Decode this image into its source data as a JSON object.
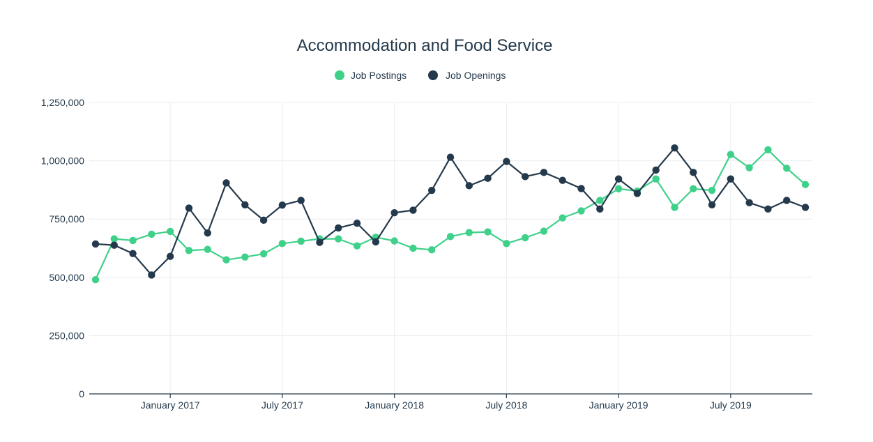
{
  "chart_data": {
    "type": "line",
    "title": "Accommodation and Food Service",
    "xlabel": "",
    "ylabel": "",
    "grid": true,
    "legend_position": "top-center",
    "x": [
      "2016-09",
      "2016-10",
      "2016-11",
      "2016-12",
      "2017-01",
      "2017-02",
      "2017-03",
      "2017-04",
      "2017-05",
      "2017-06",
      "2017-07",
      "2017-08",
      "2017-09",
      "2017-10",
      "2017-11",
      "2017-12",
      "2018-01",
      "2018-02",
      "2018-03",
      "2018-04",
      "2018-05",
      "2018-06",
      "2018-07",
      "2018-08",
      "2018-09",
      "2018-10",
      "2018-11",
      "2018-12",
      "2019-01",
      "2019-02",
      "2019-03",
      "2019-04",
      "2019-05",
      "2019-06",
      "2019-07",
      "2019-08",
      "2019-09",
      "2019-10",
      "2019-11"
    ],
    "x_ticks": [
      {
        "date": "2017-01",
        "label": "January 2017"
      },
      {
        "date": "2017-07",
        "label": "July 2017"
      },
      {
        "date": "2018-01",
        "label": "January 2018"
      },
      {
        "date": "2018-07",
        "label": "July 2018"
      },
      {
        "date": "2019-01",
        "label": "January 2019"
      },
      {
        "date": "2019-07",
        "label": "July 2019"
      }
    ],
    "y_ticks": [
      {
        "value": 0,
        "label": "0"
      },
      {
        "value": 250000,
        "label": "250,000"
      },
      {
        "value": 500000,
        "label": "500,000"
      },
      {
        "value": 750000,
        "label": "750,000"
      },
      {
        "value": 1000000,
        "label": "1,000,000"
      },
      {
        "value": 1250000,
        "label": "1,250,000"
      }
    ],
    "ylim": [
      0,
      1250000
    ],
    "series": [
      {
        "name": "Job Postings",
        "color": "#3fd08a",
        "values": [
          490000,
          665000,
          658000,
          685000,
          697000,
          615000,
          620000,
          575000,
          587000,
          601000,
          645000,
          655000,
          665000,
          665000,
          635000,
          672000,
          656000,
          625000,
          618000,
          675000,
          692000,
          695000,
          645000,
          670000,
          698000,
          755000,
          785000,
          830000,
          880000,
          870000,
          922000,
          800000,
          880000,
          873000,
          1027000,
          970000,
          1047000,
          968000,
          898000
        ]
      },
      {
        "name": "Job Openings",
        "color": "#24394c",
        "values": [
          643000,
          638000,
          602000,
          510000,
          590000,
          797000,
          690000,
          905000,
          811000,
          745000,
          810000,
          830000,
          650000,
          712000,
          732000,
          652000,
          777000,
          788000,
          873000,
          1015000,
          893000,
          925000,
          997000,
          932000,
          950000,
          916000,
          881000,
          793000,
          922000,
          860000,
          960000,
          1055000,
          950000,
          811000,
          922000,
          820000,
          793000,
          830000,
          800000
        ]
      }
    ]
  }
}
